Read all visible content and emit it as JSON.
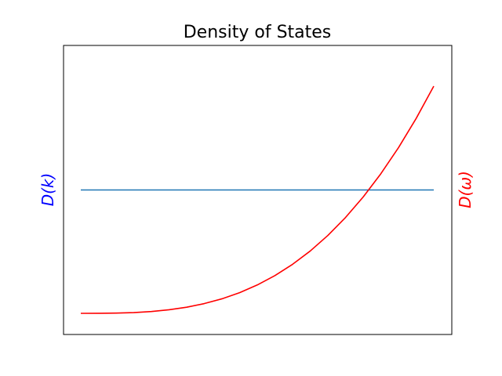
{
  "chart_data": {
    "type": "line",
    "title": "Density of States",
    "xlabel": "",
    "ylabel_left": "D(k)",
    "ylabel_right": "D(ω)",
    "xticks": [],
    "yticks_left": [],
    "yticks_right": [],
    "grid": false,
    "series": [
      {
        "axis": "left",
        "color": "#1f77b4",
        "x": [
          0,
          1
        ],
        "values": [
          1,
          1
        ]
      },
      {
        "axis": "right",
        "color": "#ff0000",
        "x": [
          0,
          0.05,
          0.1,
          0.15,
          0.2,
          0.25,
          0.3,
          0.35,
          0.4,
          0.45,
          0.5,
          0.55,
          0.6,
          0.65,
          0.7,
          0.75,
          0.8,
          0.85,
          0.9,
          0.95,
          1.0
        ],
        "values": [
          0,
          0.0005,
          0.0041,
          0.0137,
          0.0324,
          0.0632,
          0.109,
          0.174,
          0.259,
          0.369,
          0.506,
          0.673,
          0.874,
          1.111,
          1.389,
          1.709,
          2.074,
          2.488,
          2.953,
          3.473,
          4.05
        ]
      }
    ],
    "colors": {
      "left_axis_label": "#0000ff",
      "right_axis_label": "#ff0000"
    }
  }
}
